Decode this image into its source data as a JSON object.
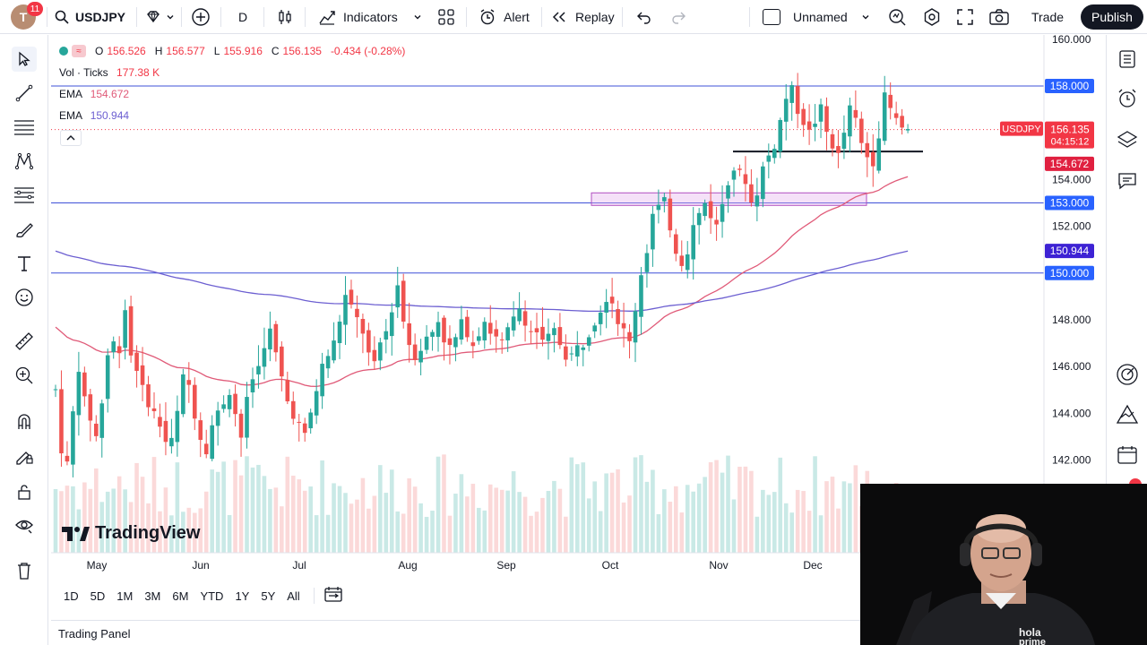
{
  "toolbar": {
    "avatar_letter": "T",
    "notification_count": "11",
    "symbol": "USDJPY",
    "interval": "D",
    "indicators_label": "Indicators",
    "alert_label": "Alert",
    "replay_label": "Replay",
    "layout_name": "Unnamed",
    "trade_label": "Trade",
    "publish_label": "Publish"
  },
  "legend": {
    "open_label": "O",
    "open": "156.526",
    "high_label": "H",
    "high": "156.577",
    "low_label": "L",
    "low": "155.916",
    "close_label": "C",
    "close": "156.135",
    "change": "-0.434 (-0.28%)",
    "vol_label": "Vol · Ticks",
    "vol_value": "177.38 K",
    "ema1_label": "EMA",
    "ema1_value": "154.672",
    "ema2_label": "EMA",
    "ema2_value": "150.944"
  },
  "price_axis": {
    "ticks": [
      "160.000",
      "158.000",
      "154.000",
      "152.000",
      "148.000",
      "146.000",
      "144.000",
      "142.000"
    ],
    "labels": {
      "line_158": "158.000",
      "symbol_tag": "USDJPY",
      "last_price": "156.135",
      "countdown": "04:15:12",
      "ema_fast": "154.672",
      "line_153": "153.000",
      "ema_slow": "150.944",
      "line_150": "150.000"
    }
  },
  "time_axis": {
    "months": [
      "May",
      "Jun",
      "Jul",
      "Aug",
      "Sep",
      "Oct",
      "Nov",
      "Dec"
    ]
  },
  "watermark": "TradingView",
  "timeframes": [
    "1D",
    "5D",
    "1M",
    "3M",
    "6M",
    "YTD",
    "1Y",
    "5Y",
    "All"
  ],
  "trading_panel": "Trading Panel",
  "colors": {
    "up": "#26a69a",
    "down": "#ef5350",
    "ema_fast": "#e05a78",
    "ema_slow": "#6c5fd1",
    "hline": "#3f51d8",
    "accent": "#2962ff",
    "price_tag": "#f23645",
    "zone_border": "#b14fc1"
  },
  "chart_data": {
    "type": "candlestick",
    "symbol": "USDJPY",
    "interval": "D",
    "horizontal_lines": [
      158.0,
      153.0,
      150.0
    ],
    "support_line": 155.2,
    "zone": [
      152.9,
      153.2
    ],
    "ema_fast_last": 154.672,
    "ema_slow_last": 150.944,
    "last": 156.135,
    "ylim": [
      140.5,
      160.2
    ],
    "path": [
      145.0,
      142.5,
      141.8,
      144.0,
      146.0,
      144.5,
      143.8,
      143.0,
      144.5,
      146.5,
      147.0,
      146.8,
      148.5,
      146.5,
      146.0,
      145.0,
      144.5,
      144.0,
      143.5,
      142.8,
      142.8,
      144.0,
      145.5,
      145.2,
      144.0,
      143.0,
      142.5,
      143.5,
      144.0,
      144.5,
      145.0,
      144.0,
      143.0,
      144.5,
      145.5,
      146.0,
      147.0,
      147.5,
      146.5,
      145.5,
      144.5,
      144.0,
      143.5,
      143.0,
      144.0,
      145.0,
      146.0,
      146.5,
      147.0,
      148.0,
      149.0,
      148.5,
      148.0,
      147.5,
      146.5,
      146.0,
      147.0,
      147.5,
      148.5,
      149.5,
      148.0,
      147.0,
      146.5,
      146.8,
      147.2,
      147.5,
      148.0,
      147.2,
      146.8,
      147.2,
      147.8,
      147.5,
      147.0,
      147.5,
      148.0,
      147.5,
      147.2,
      147.0,
      147.5,
      148.0,
      148.5,
      148.0,
      147.5,
      147.5,
      147.0,
      147.2,
      147.5,
      147.0,
      146.5,
      146.5,
      146.8,
      147.0,
      147.5,
      148.0,
      148.5,
      149.0,
      148.8,
      148.0,
      147.5,
      147.0,
      148.5,
      150.0,
      151.0,
      152.5,
      152.8,
      153.0,
      152.0,
      151.0,
      150.5,
      151.0,
      152.0,
      152.5,
      153.0,
      152.5,
      152.0,
      153.0,
      154.0,
      154.5,
      154.2,
      154.0,
      153.0,
      153.5,
      154.5,
      155.0,
      155.5,
      156.5,
      157.5,
      157.8,
      157.0,
      156.5,
      156.0,
      156.5,
      157.0,
      156.0,
      155.5,
      155.0,
      156.0,
      157.0,
      156.5,
      155.5,
      155.0,
      154.8,
      156.0,
      157.5,
      157.0,
      156.5,
      156.2,
      156.1
    ]
  }
}
